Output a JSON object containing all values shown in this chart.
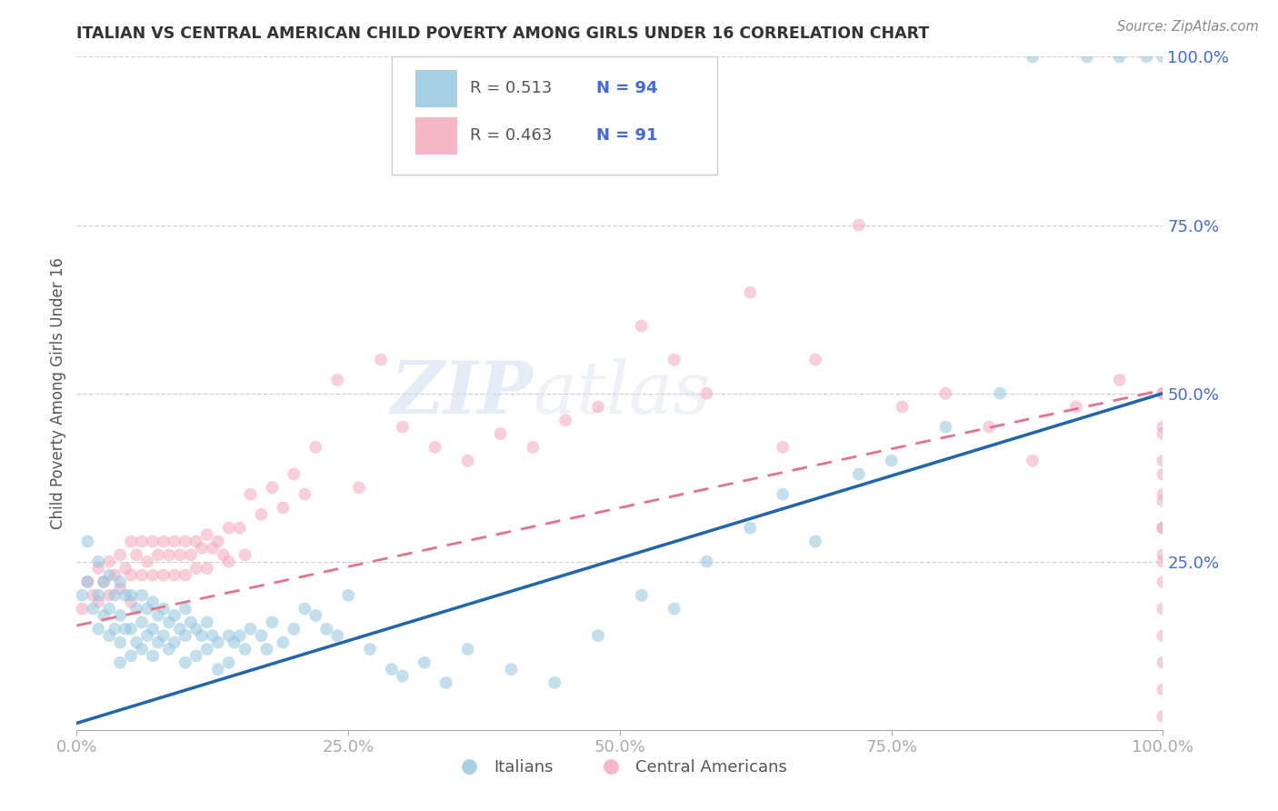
{
  "title": "ITALIAN VS CENTRAL AMERICAN CHILD POVERTY AMONG GIRLS UNDER 16 CORRELATION CHART",
  "source": "Source: ZipAtlas.com",
  "ylabel": "Child Poverty Among Girls Under 16",
  "xlim": [
    0.0,
    1.0
  ],
  "ylim": [
    0.0,
    1.0
  ],
  "yticks": [
    0.0,
    0.25,
    0.5,
    0.75,
    1.0
  ],
  "xticks": [
    0.0,
    0.25,
    0.5,
    0.75,
    1.0
  ],
  "xtick_labels": [
    "0.0%",
    "25.0%",
    "50.0%",
    "75.0%",
    "100.0%"
  ],
  "ytick_labels": [
    "",
    "25.0%",
    "50.0%",
    "75.0%",
    "100.0%"
  ],
  "legend_label1": "Italians",
  "legend_label2": "Central Americans",
  "R1": 0.513,
  "N1": 94,
  "R2": 0.463,
  "N2": 91,
  "blue_color": "#92c5de",
  "pink_color": "#f4a6b8",
  "blue_line_color": "#2166ac",
  "pink_line_color": "#e8718a",
  "watermark": "ZIPatlas",
  "background_color": "#ffffff",
  "grid_color": "#cccccc",
  "title_color": "#333333",
  "scatter_alpha": 0.55,
  "scatter_size": 100,
  "blue_line_y0": 0.01,
  "blue_line_y1": 0.5,
  "pink_line_y0": 0.155,
  "pink_line_y1": 0.505,
  "italians_x": [
    0.005,
    0.01,
    0.01,
    0.015,
    0.02,
    0.02,
    0.02,
    0.025,
    0.025,
    0.03,
    0.03,
    0.03,
    0.035,
    0.035,
    0.04,
    0.04,
    0.04,
    0.04,
    0.045,
    0.045,
    0.05,
    0.05,
    0.05,
    0.055,
    0.055,
    0.06,
    0.06,
    0.06,
    0.065,
    0.065,
    0.07,
    0.07,
    0.07,
    0.075,
    0.075,
    0.08,
    0.08,
    0.085,
    0.085,
    0.09,
    0.09,
    0.095,
    0.1,
    0.1,
    0.1,
    0.105,
    0.11,
    0.11,
    0.115,
    0.12,
    0.12,
    0.125,
    0.13,
    0.13,
    0.14,
    0.14,
    0.145,
    0.15,
    0.155,
    0.16,
    0.17,
    0.175,
    0.18,
    0.19,
    0.2,
    0.21,
    0.22,
    0.23,
    0.24,
    0.25,
    0.27,
    0.29,
    0.3,
    0.32,
    0.34,
    0.36,
    0.4,
    0.44,
    0.48,
    0.52,
    0.55,
    0.58,
    0.62,
    0.65,
    0.68,
    0.72,
    0.75,
    0.8,
    0.85,
    0.88,
    0.93,
    0.96,
    0.985,
    1.0
  ],
  "italians_y": [
    0.2,
    0.28,
    0.22,
    0.18,
    0.25,
    0.2,
    0.15,
    0.22,
    0.17,
    0.23,
    0.18,
    0.14,
    0.2,
    0.15,
    0.22,
    0.17,
    0.13,
    0.1,
    0.2,
    0.15,
    0.2,
    0.15,
    0.11,
    0.18,
    0.13,
    0.2,
    0.16,
    0.12,
    0.18,
    0.14,
    0.19,
    0.15,
    0.11,
    0.17,
    0.13,
    0.18,
    0.14,
    0.16,
    0.12,
    0.17,
    0.13,
    0.15,
    0.18,
    0.14,
    0.1,
    0.16,
    0.15,
    0.11,
    0.14,
    0.16,
    0.12,
    0.14,
    0.13,
    0.09,
    0.14,
    0.1,
    0.13,
    0.14,
    0.12,
    0.15,
    0.14,
    0.12,
    0.16,
    0.13,
    0.15,
    0.18,
    0.17,
    0.15,
    0.14,
    0.2,
    0.12,
    0.09,
    0.08,
    0.1,
    0.07,
    0.12,
    0.09,
    0.07,
    0.14,
    0.2,
    0.18,
    0.25,
    0.3,
    0.35,
    0.28,
    0.38,
    0.4,
    0.45,
    0.5,
    1.0,
    1.0,
    1.0,
    1.0,
    1.0
  ],
  "central_x": [
    0.005,
    0.01,
    0.015,
    0.02,
    0.02,
    0.025,
    0.03,
    0.03,
    0.035,
    0.04,
    0.04,
    0.045,
    0.05,
    0.05,
    0.05,
    0.055,
    0.06,
    0.06,
    0.065,
    0.07,
    0.07,
    0.075,
    0.08,
    0.08,
    0.085,
    0.09,
    0.09,
    0.095,
    0.1,
    0.1,
    0.105,
    0.11,
    0.11,
    0.115,
    0.12,
    0.12,
    0.125,
    0.13,
    0.135,
    0.14,
    0.14,
    0.15,
    0.155,
    0.16,
    0.17,
    0.18,
    0.19,
    0.2,
    0.21,
    0.22,
    0.24,
    0.26,
    0.28,
    0.3,
    0.33,
    0.36,
    0.39,
    0.42,
    0.45,
    0.48,
    0.52,
    0.55,
    0.58,
    0.62,
    0.65,
    0.68,
    0.72,
    0.76,
    0.8,
    0.84,
    0.88,
    0.92,
    0.96,
    1.0,
    1.0,
    1.0,
    1.0,
    1.0,
    1.0,
    1.0,
    1.0,
    1.0,
    1.0,
    1.0,
    1.0,
    1.0,
    1.0,
    1.0,
    1.0,
    1.0,
    1.0
  ],
  "central_y": [
    0.18,
    0.22,
    0.2,
    0.24,
    0.19,
    0.22,
    0.25,
    0.2,
    0.23,
    0.26,
    0.21,
    0.24,
    0.28,
    0.23,
    0.19,
    0.26,
    0.28,
    0.23,
    0.25,
    0.28,
    0.23,
    0.26,
    0.28,
    0.23,
    0.26,
    0.28,
    0.23,
    0.26,
    0.28,
    0.23,
    0.26,
    0.28,
    0.24,
    0.27,
    0.29,
    0.24,
    0.27,
    0.28,
    0.26,
    0.3,
    0.25,
    0.3,
    0.26,
    0.35,
    0.32,
    0.36,
    0.33,
    0.38,
    0.35,
    0.42,
    0.52,
    0.36,
    0.55,
    0.45,
    0.42,
    0.4,
    0.44,
    0.42,
    0.46,
    0.48,
    0.6,
    0.55,
    0.5,
    0.65,
    0.42,
    0.55,
    0.75,
    0.48,
    0.5,
    0.45,
    0.4,
    0.48,
    0.52,
    0.5,
    0.44,
    0.38,
    0.34,
    0.3,
    0.26,
    0.22,
    0.18,
    0.14,
    0.1,
    0.06,
    0.02,
    0.5,
    0.45,
    0.4,
    0.35,
    0.3,
    0.25
  ]
}
